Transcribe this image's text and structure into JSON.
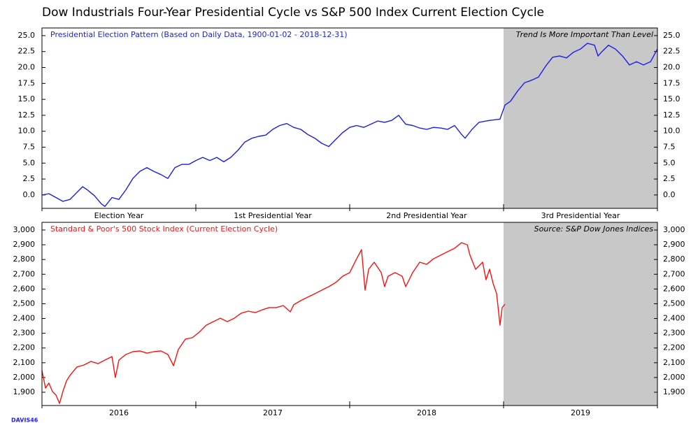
{
  "title": "Dow Industrials Four-Year Presidential Cycle vs S&P 500 Index Current Election Cycle",
  "footer": "DAVIS46",
  "chart_data": [
    {
      "type": "line",
      "annotation": "Trend Is More Important Than Level",
      "shade": [
        3,
        4
      ],
      "shade_color": "#c8c8c8",
      "xlim": [
        0,
        4
      ],
      "xticks": [
        0,
        1,
        2,
        3,
        4
      ],
      "period_labels": [
        "Election Year",
        "1st Presidential Year",
        "2nd Presidential Year",
        "3rd Presidential Year"
      ],
      "ylim": [
        -2.1,
        26.2
      ],
      "yticks": [
        {
          "value": 0,
          "label": "0.0"
        },
        2.5,
        {
          "value": 5,
          "label": "5.0"
        },
        7.5,
        {
          "value": 10,
          "label": "10.0"
        },
        12.5,
        {
          "value": 15,
          "label": "15.0"
        },
        17.5,
        {
          "value": 20,
          "label": "20.0"
        },
        22.5,
        {
          "value": 25,
          "label": "25.0"
        }
      ],
      "x": [
        0,
        0.045,
        0.091,
        0.136,
        0.182,
        0.227,
        0.264,
        0.295,
        0.341,
        0.386,
        0.409,
        0.455,
        0.5,
        0.545,
        0.591,
        0.636,
        0.682,
        0.727,
        0.773,
        0.818,
        0.864,
        0.909,
        0.955,
        1,
        1.045,
        1.091,
        1.136,
        1.182,
        1.227,
        1.273,
        1.318,
        1.364,
        1.409,
        1.455,
        1.5,
        1.545,
        1.591,
        1.636,
        1.682,
        1.727,
        1.773,
        1.818,
        1.864,
        1.909,
        1.955,
        2,
        2.045,
        2.091,
        2.136,
        2.182,
        2.227,
        2.273,
        2.318,
        2.364,
        2.409,
        2.455,
        2.5,
        2.545,
        2.591,
        2.636,
        2.682,
        2.727,
        2.75,
        2.795,
        2.841,
        2.909,
        2.977,
        3.009,
        3.045,
        3.091,
        3.136,
        3.182,
        3.227,
        3.273,
        3.318,
        3.364,
        3.409,
        3.455,
        3.5,
        3.545,
        3.591,
        3.614,
        3.636,
        3.682,
        3.727,
        3.773,
        3.818,
        3.864,
        3.909,
        3.955,
        4
      ],
      "series": [
        {
          "name": "Presidential Election Pattern (Based on Daily Data, 1900-01-02 - 2018-12-31)",
          "color": "#1c1cf0",
          "values": [
            0,
            0.2,
            -0.4,
            -1,
            -0.7,
            0.4,
            1.3,
            0.8,
            -0.1,
            -1.4,
            -1.8,
            -0.4,
            -0.7,
            0.8,
            2.6,
            3.7,
            4.3,
            3.7,
            3.2,
            2.6,
            4.3,
            4.8,
            4.8,
            5.4,
            5.9,
            5.4,
            5.9,
            5.2,
            5.9,
            7,
            8.3,
            8.9,
            9.2,
            9.4,
            10.3,
            10.9,
            11.2,
            10.6,
            10.3,
            9.5,
            8.9,
            8.1,
            7.6,
            8.7,
            9.8,
            10.6,
            10.9,
            10.6,
            11.1,
            11.6,
            11.4,
            11.7,
            12.5,
            11.1,
            10.9,
            10.5,
            10.3,
            10.6,
            10.5,
            10.3,
            10.9,
            9.5,
            8.9,
            10.3,
            11.4,
            11.7,
            11.9,
            14.1,
            14.7,
            16.3,
            17.6,
            18,
            18.5,
            20.2,
            21.6,
            21.8,
            21.5,
            22.4,
            22.9,
            23.8,
            23.5,
            21.8,
            22.4,
            23.5,
            22.9,
            21.8,
            20.4,
            20.9,
            20.4,
            20.9,
            22.9
          ]
        }
      ]
    },
    {
      "type": "line",
      "annotation": "Source:  S&P Dow Jones Indices",
      "shade": [
        2019,
        2020
      ],
      "shade_color": "#c8c8c8",
      "xlim": [
        2016,
        2020
      ],
      "xticks": [
        2016,
        2017,
        2018,
        2019,
        2020
      ],
      "period_labels": [
        "2016",
        "2017",
        "2018",
        "2019"
      ],
      "ylim": [
        1810,
        3052
      ],
      "yticks": [
        {
          "value": 1900,
          "label": "1,900"
        },
        {
          "value": 2000,
          "label": "2,000"
        },
        {
          "value": 2100,
          "label": "2,100"
        },
        {
          "value": 2200,
          "label": "2,200"
        },
        {
          "value": 2300,
          "label": "2,300"
        },
        {
          "value": 2400,
          "label": "2,400"
        },
        {
          "value": 2500,
          "label": "2,500"
        },
        {
          "value": 2600,
          "label": "2,600"
        },
        {
          "value": 2700,
          "label": "2,700"
        },
        {
          "value": 2800,
          "label": "2,800"
        },
        {
          "value": 2900,
          "label": "2,900"
        },
        {
          "value": 3000,
          "label": "3,000"
        }
      ],
      "x": [
        2016,
        2016.023,
        2016.045,
        2016.068,
        2016.091,
        2016.114,
        2016.136,
        2016.159,
        2016.182,
        2016.227,
        2016.273,
        2016.318,
        2016.364,
        2016.409,
        2016.455,
        2016.477,
        2016.5,
        2016.545,
        2016.591,
        2016.636,
        2016.682,
        2016.727,
        2016.773,
        2016.818,
        2016.855,
        2016.886,
        2016.932,
        2016.977,
        2017.023,
        2017.068,
        2017.114,
        2017.159,
        2017.205,
        2017.25,
        2017.295,
        2017.341,
        2017.386,
        2017.432,
        2017.477,
        2017.523,
        2017.568,
        2017.614,
        2017.636,
        2017.682,
        2017.727,
        2017.773,
        2017.818,
        2017.864,
        2017.909,
        2017.955,
        2018,
        2018.045,
        2018.077,
        2018.1,
        2018.123,
        2018.159,
        2018.205,
        2018.227,
        2018.25,
        2018.295,
        2018.341,
        2018.364,
        2018.409,
        2018.455,
        2018.5,
        2018.545,
        2018.591,
        2018.636,
        2018.682,
        2018.727,
        2018.764,
        2018.782,
        2018.818,
        2018.864,
        2018.886,
        2018.909,
        2018.932,
        2018.955,
        2018.977,
        2018.991,
        2019.009
      ],
      "series": [
        {
          "name": "Standard & Poor's 500 Stock Index (Current Election Cycle)",
          "color": "#ff1010",
          "values": [
            2047,
            1928,
            1962,
            1905,
            1881,
            1824,
            1905,
            1976,
            2014,
            2071,
            2085,
            2109,
            2094,
            2118,
            2142,
            2000,
            2118,
            2156,
            2175,
            2180,
            2165,
            2175,
            2180,
            2156,
            2080,
            2189,
            2260,
            2270,
            2308,
            2355,
            2379,
            2402,
            2379,
            2402,
            2436,
            2450,
            2440,
            2459,
            2474,
            2474,
            2488,
            2445,
            2493,
            2521,
            2545,
            2568,
            2592,
            2616,
            2644,
            2687,
            2711,
            2805,
            2867,
            2592,
            2734,
            2782,
            2711,
            2616,
            2687,
            2711,
            2687,
            2616,
            2711,
            2782,
            2767,
            2805,
            2829,
            2853,
            2876,
            2914,
            2900,
            2829,
            2734,
            2782,
            2663,
            2734,
            2639,
            2568,
            2355,
            2474,
            2497
          ]
        }
      ]
    }
  ]
}
